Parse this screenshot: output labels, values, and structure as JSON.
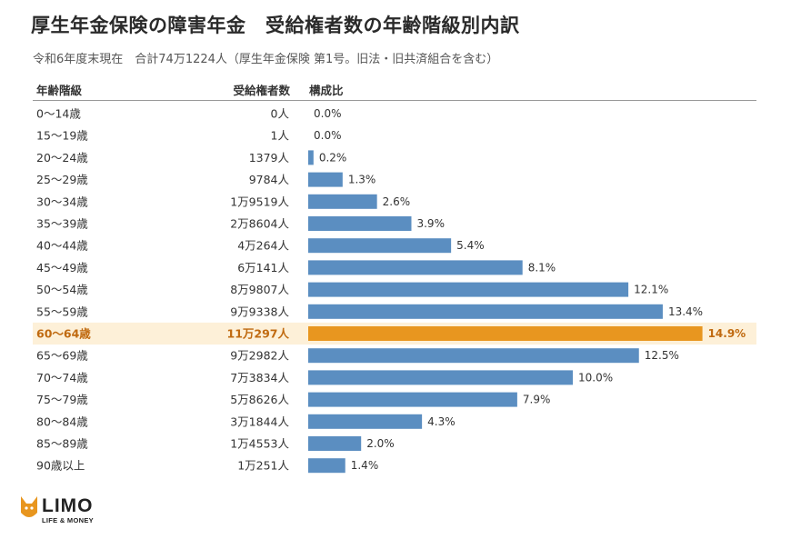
{
  "title": "厚生年金保険の障害年金　受給権者数の年齢階級別内訳",
  "subtitle": "令和6年度末現在　合計74万1224人（厚生年金保険 第1号。旧法・旧共済組合を含む）",
  "headers": {
    "age": "年齢階級",
    "count": "受給権者数",
    "ratio": "構成比"
  },
  "colors": {
    "bar": "#5b8ec1",
    "highlight_bar": "#e8961f",
    "highlight_row": "#fdf0d8",
    "highlight_text": "#c06a10",
    "text": "#333333"
  },
  "chart_data": {
    "type": "bar",
    "orientation": "horizontal",
    "categories": [
      "0〜14歳",
      "15〜19歳",
      "20〜24歳",
      "25〜29歳",
      "30〜34歳",
      "35〜39歳",
      "40〜44歳",
      "45〜49歳",
      "50〜54歳",
      "55〜59歳",
      "60〜64歳",
      "65〜69歳",
      "70〜74歳",
      "75〜79歳",
      "80〜84歳",
      "85〜89歳",
      "90歳以上"
    ],
    "counts": [
      "0人",
      "1人",
      "1379人",
      "9784人",
      "1万9519人",
      "2万8604人",
      "4万264人",
      "6万141人",
      "8万9807人",
      "9万9338人",
      "11万297人",
      "9万2982人",
      "7万3834人",
      "5万8626人",
      "3万1844人",
      "1万4553人",
      "1万251人"
    ],
    "values": [
      0.0,
      0.0,
      0.2,
      1.3,
      2.6,
      3.9,
      5.4,
      8.1,
      12.1,
      13.4,
      14.9,
      12.5,
      10.0,
      7.9,
      4.3,
      2.0,
      1.4
    ],
    "value_labels": [
      "0.0%",
      "0.0%",
      "0.2%",
      "1.3%",
      "2.6%",
      "3.9%",
      "5.4%",
      "8.1%",
      "12.1%",
      "13.4%",
      "14.9%",
      "12.5%",
      "10.0%",
      "7.9%",
      "4.3%",
      "2.0%",
      "1.4%"
    ],
    "highlight_index": 10,
    "unit": "%",
    "xlim": [
      0,
      14.9
    ]
  },
  "logo": {
    "name": "LIMO",
    "tagline": "LIFE & MONEY"
  }
}
